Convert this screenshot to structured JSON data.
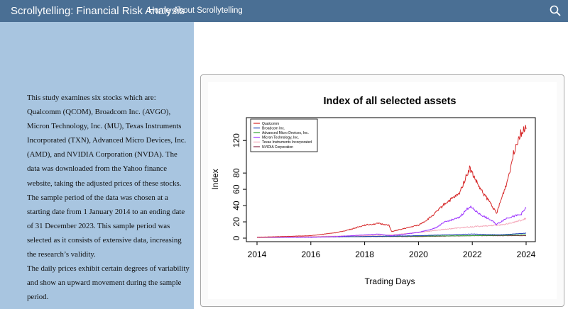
{
  "navbar": {
    "brand": "Scrollytelling: Financial Risk Analysis",
    "links": [
      "Home",
      "About Scrollytelling"
    ],
    "search_icon": "search-icon"
  },
  "sidebar": {
    "paragraphs": [
      "This study examines six stocks which are: Qualcomm (QCOM), Broadcom Inc. (AVGO), Micron Technology, Inc. (MU), Texas Instruments Incorporated (TXN), Advanced Micro Devices, Inc. (AMD), and NVIDIA Corporation (NVDA). The data was downloaded from the Yahoo finance website, taking the adjusted prices of these stocks. The sample period of the data was chosen at a starting date from 1 January 2014 to an ending date of 31 December 2023. This sample period was selected as it consists of extensive data, increasing the research’s validity.",
      "The daily prices exhibit certain degrees of variability and show an upward movement during the sample period."
    ]
  },
  "chart_data": {
    "type": "line",
    "title": "Index of all selected assets",
    "xlabel": "Trading Days",
    "ylabel": "Index",
    "xlim": [
      2014,
      2024
    ],
    "ylim": [
      0,
      135
    ],
    "x_ticks": [
      "2014",
      "2016",
      "2018",
      "2020",
      "2022",
      "2024"
    ],
    "y_ticks": [
      "0",
      "20",
      "40",
      "60",
      "80",
      "120"
    ],
    "legend_position": "top-left",
    "series": [
      {
        "name": "Qualcomm",
        "color": "#d62728",
        "x": [
          2014,
          2015,
          2016,
          2017,
          2017.5,
          2018,
          2018.5,
          2018.9,
          2019,
          2019.5,
          2020,
          2020.3,
          2020.6,
          2021,
          2021.5,
          2021.9,
          2022.3,
          2022.7,
          2022.9,
          2023.3,
          2023.6,
          2023.8,
          2024
        ],
        "y": [
          1,
          2,
          3,
          7,
          11,
          16,
          18,
          16,
          8,
          12,
          16,
          22,
          30,
          43,
          54,
          86,
          60,
          42,
          30,
          70,
          113,
          130,
          134
        ]
      },
      {
        "name": "Broadcom Inc.",
        "color": "#1f3fb4",
        "x": [
          2014,
          2016,
          2018,
          2020,
          2021,
          2022,
          2023,
          2024
        ],
        "y": [
          1,
          1.5,
          2,
          3,
          4,
          5,
          4,
          6
        ]
      },
      {
        "name": "Advanced Micro Devices, Inc.",
        "color": "#2ca02c",
        "x": [
          2014,
          2016,
          2018,
          2020,
          2022,
          2024
        ],
        "y": [
          1,
          1.5,
          2,
          2.5,
          3,
          4
        ]
      },
      {
        "name": "Micron Technology, Inc.",
        "color": "#9b30ff",
        "x": [
          2014,
          2016,
          2017,
          2018,
          2018.5,
          2019,
          2019.5,
          2020,
          2020.6,
          2021,
          2021.5,
          2021.9,
          2022.3,
          2022.7,
          2022.9,
          2023.3,
          2023.8,
          2024
        ],
        "y": [
          1,
          1,
          2,
          4,
          5,
          3,
          5,
          7,
          12,
          20,
          25,
          39,
          29,
          22,
          17,
          25,
          29,
          37
        ]
      },
      {
        "name": "Texas Instruments Incorporated",
        "color": "#f4a6b8",
        "x": [
          2014,
          2016,
          2018,
          2019,
          2020,
          2021,
          2022,
          2023,
          2023.5,
          2024
        ],
        "y": [
          1,
          2,
          3,
          4,
          7,
          11,
          14,
          16,
          19,
          24
        ]
      },
      {
        "name": "NVIDIA Corporation",
        "color": "#8c2d4a",
        "x": [
          2014,
          2016,
          2018,
          2020,
          2022,
          2024
        ],
        "y": [
          1,
          1.5,
          2,
          2,
          3,
          3
        ]
      }
    ]
  }
}
